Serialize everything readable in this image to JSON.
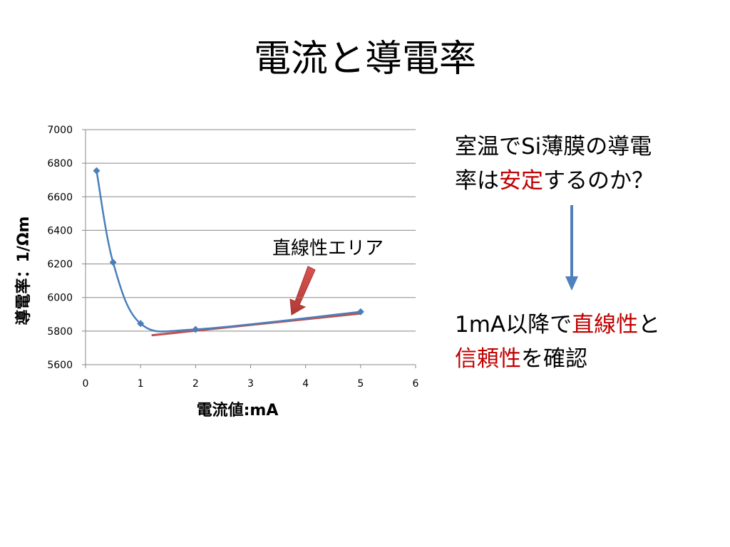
{
  "title": "電流と導電率",
  "notes": [
    {
      "lines": [
        [
          {
            "text": "室温でSi薄膜の導電",
            "color": "#000000"
          }
        ],
        [
          {
            "text": "率は",
            "color": "#000000"
          },
          {
            "text": "安定",
            "color": "#c00000"
          },
          {
            "text": "するのか？",
            "color": "#000000"
          }
        ]
      ]
    },
    {
      "lines": [
        [
          {
            "text": "1mA以降で",
            "color": "#000000"
          },
          {
            "text": "直線性",
            "color": "#c00000"
          },
          {
            "text": "と",
            "color": "#000000"
          }
        ],
        [
          {
            "text": "信頼性",
            "color": "#c00000"
          },
          {
            "text": "を確認",
            "color": "#000000"
          }
        ]
      ]
    }
  ],
  "chart_data": {
    "type": "scatter",
    "x_label": "電流値:mA",
    "y_label": "導電率：1/Ωm",
    "annotation": "直線性エリア",
    "x": [
      0.2,
      0.5,
      1,
      2,
      5
    ],
    "series": [
      {
        "name": "導電率",
        "color": "#4a7ebb",
        "values": [
          6755,
          6210,
          5845,
          5810,
          5915
        ]
      }
    ],
    "trendline": {
      "x": [
        1.2,
        5
      ],
      "y": [
        5775,
        5905
      ],
      "color": "#c0504d"
    },
    "xlim": [
      0,
      6
    ],
    "xticks": [
      0,
      1,
      2,
      3,
      4,
      5,
      6
    ],
    "ylim": [
      5600,
      7000
    ],
    "yticks": [
      5600,
      5800,
      6000,
      6200,
      6400,
      6600,
      6800,
      7000
    ],
    "grid": true,
    "smooth": true
  }
}
